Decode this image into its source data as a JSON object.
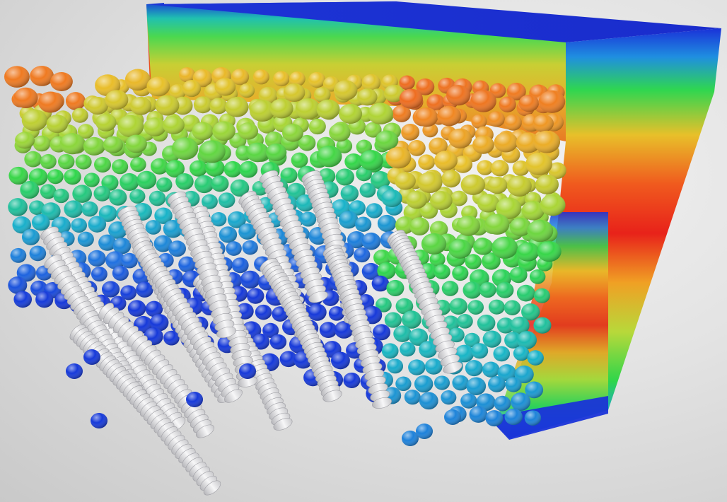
{
  "scene": {
    "subject": "particle-fiber-simulation-render",
    "colormap": [
      "#1430d8",
      "#1f6fe0",
      "#18b4c8",
      "#2fd64a",
      "#a8d636",
      "#e8c12a",
      "#f08a22",
      "#e8241c"
    ],
    "fiber_color": "#e9e9ea",
    "background_color": "#dcdcdc"
  }
}
